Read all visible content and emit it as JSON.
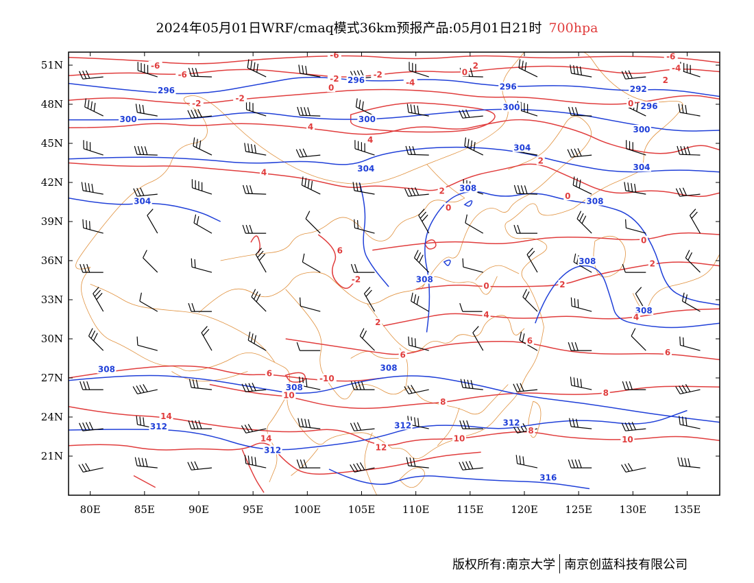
{
  "header": {
    "title_main": "2024年05月01日WRF/cmaq模式36km预报产品:05月01日21时",
    "title_level": "700hpa"
  },
  "footer": {
    "copyright_left": "版权所有:南京大学",
    "copyright_right": "南京创蓝科技有限公司"
  },
  "map": {
    "lon_range": [
      78,
      138
    ],
    "lat_range": [
      18,
      52
    ],
    "lon_ticks": [
      "80E",
      "85E",
      "90E",
      "95E",
      "100E",
      "105E",
      "110E",
      "115E",
      "120E",
      "125E",
      "130E",
      "135E"
    ],
    "lat_ticks": [
      "51N",
      "48N",
      "45N",
      "42N",
      "39N",
      "36N",
      "33N",
      "30N",
      "27N",
      "24N",
      "21N"
    ],
    "colors": {
      "height_contour": "#1f3fd8",
      "temperature_contour": "#e03c3c",
      "boundary": "#e0903c",
      "wind_barb": "#000000",
      "title_level": "#e03c3c"
    },
    "height_labels": [
      {
        "text": "296",
        "lon": 87,
        "lat": 49.0
      },
      {
        "text": "296",
        "lon": 104.5,
        "lat": 49.8
      },
      {
        "text": "296",
        "lon": 118.5,
        "lat": 49.3
      },
      {
        "text": "292",
        "lon": 130.5,
        "lat": 49.1
      },
      {
        "text": "296",
        "lon": 131.5,
        "lat": 47.8
      },
      {
        "text": "300",
        "lon": 83.5,
        "lat": 46.8
      },
      {
        "text": "300",
        "lon": 105.5,
        "lat": 46.8
      },
      {
        "text": "300",
        "lon": 118.8,
        "lat": 47.7
      },
      {
        "text": "300",
        "lon": 130.8,
        "lat": 46.0
      },
      {
        "text": "304",
        "lon": 119.8,
        "lat": 44.6
      },
      {
        "text": "304",
        "lon": 105.4,
        "lat": 43.0
      },
      {
        "text": "304",
        "lon": 130.8,
        "lat": 43.1
      },
      {
        "text": "304",
        "lon": 84.8,
        "lat": 40.5
      },
      {
        "text": "308",
        "lon": 114.8,
        "lat": 41.5
      },
      {
        "text": "308",
        "lon": 126.5,
        "lat": 40.5
      },
      {
        "text": "308",
        "lon": 110.8,
        "lat": 34.5
      },
      {
        "text": "308",
        "lon": 125.8,
        "lat": 35.9
      },
      {
        "text": "308",
        "lon": 131.0,
        "lat": 32.1
      },
      {
        "text": "308",
        "lon": 81.5,
        "lat": 27.6
      },
      {
        "text": "308",
        "lon": 98.8,
        "lat": 26.2
      },
      {
        "text": "308",
        "lon": 107.5,
        "lat": 27.7
      },
      {
        "text": "312",
        "lon": 86.3,
        "lat": 23.2
      },
      {
        "text": "312",
        "lon": 96.8,
        "lat": 21.4
      },
      {
        "text": "312",
        "lon": 108.8,
        "lat": 23.3
      },
      {
        "text": "312",
        "lon": 118.8,
        "lat": 23.5
      },
      {
        "text": "316",
        "lon": 122.2,
        "lat": 19.3
      }
    ],
    "temperature_labels": [
      {
        "text": "-6",
        "lon": 86.0,
        "lat": 50.9
      },
      {
        "text": "-6",
        "lon": 88.5,
        "lat": 50.2
      },
      {
        "text": "-6",
        "lon": 102.5,
        "lat": 51.7
      },
      {
        "text": "-2",
        "lon": 102.5,
        "lat": 49.9
      },
      {
        "text": "0",
        "lon": 102.2,
        "lat": 49.2
      },
      {
        "text": "-2",
        "lon": 106.5,
        "lat": 50.2
      },
      {
        "text": "-4",
        "lon": 109.5,
        "lat": 49.6
      },
      {
        "text": "0",
        "lon": 114.5,
        "lat": 50.4
      },
      {
        "text": "2",
        "lon": 115.5,
        "lat": 50.9
      },
      {
        "text": "-6",
        "lon": 133.5,
        "lat": 51.6
      },
      {
        "text": "-4",
        "lon": 134.0,
        "lat": 50.7
      },
      {
        "text": "2",
        "lon": 133.0,
        "lat": 49.8
      },
      {
        "text": "0",
        "lon": 129.8,
        "lat": 48.0
      },
      {
        "text": "-2",
        "lon": 89.8,
        "lat": 48.0
      },
      {
        "text": "-2",
        "lon": 93.8,
        "lat": 48.4
      },
      {
        "text": "4",
        "lon": 100.3,
        "lat": 46.2
      },
      {
        "text": "4",
        "lon": 105.8,
        "lat": 45.2
      },
      {
        "text": "4",
        "lon": 96.0,
        "lat": 42.7
      },
      {
        "text": "2",
        "lon": 112.4,
        "lat": 41.3
      },
      {
        "text": "0",
        "lon": 113.0,
        "lat": 40.0
      },
      {
        "text": "2",
        "lon": 121.5,
        "lat": 43.6
      },
      {
        "text": "0",
        "lon": 124.0,
        "lat": 40.9
      },
      {
        "text": "0",
        "lon": 131.0,
        "lat": 37.5
      },
      {
        "text": "2",
        "lon": 131.8,
        "lat": 35.7
      },
      {
        "text": "6",
        "lon": 103.0,
        "lat": 36.7
      },
      {
        "text": "-2",
        "lon": 104.5,
        "lat": 34.5
      },
      {
        "text": "0",
        "lon": 116.5,
        "lat": 34.0
      },
      {
        "text": "2",
        "lon": 123.5,
        "lat": 34.1
      },
      {
        "text": "4",
        "lon": 116.5,
        "lat": 31.8
      },
      {
        "text": "4",
        "lon": 130.3,
        "lat": 31.6
      },
      {
        "text": "2",
        "lon": 106.5,
        "lat": 31.2
      },
      {
        "text": "6",
        "lon": 120.5,
        "lat": 29.8
      },
      {
        "text": "6",
        "lon": 133.2,
        "lat": 28.9
      },
      {
        "text": "6",
        "lon": 108.8,
        "lat": 28.7
      },
      {
        "text": "6",
        "lon": 96.5,
        "lat": 27.3
      },
      {
        "text": "-10",
        "lon": 101.8,
        "lat": 26.9
      },
      {
        "text": "10",
        "lon": 98.3,
        "lat": 25.6
      },
      {
        "text": "8",
        "lon": 112.5,
        "lat": 25.1
      },
      {
        "text": "8",
        "lon": 127.5,
        "lat": 25.8
      },
      {
        "text": "14",
        "lon": 87.0,
        "lat": 24.0
      },
      {
        "text": "14",
        "lon": 96.2,
        "lat": 22.3
      },
      {
        "text": "12",
        "lon": 106.8,
        "lat": 21.6
      },
      {
        "text": "10",
        "lon": 114.0,
        "lat": 22.3
      },
      {
        "text": "10",
        "lon": 129.5,
        "lat": 22.2
      },
      {
        "text": "8",
        "lon": 120.6,
        "lat": 22.9
      }
    ]
  }
}
